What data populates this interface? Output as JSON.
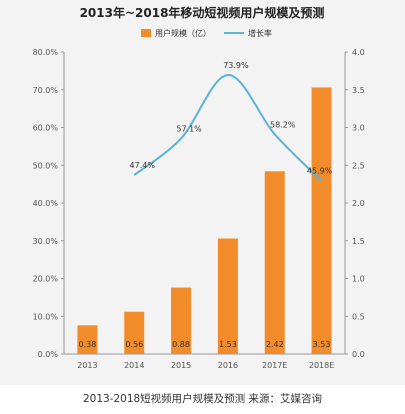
{
  "chart_data": {
    "type": "bar",
    "title": "2013年~2018年移动短视频用户规模及预测",
    "categories": [
      "2013",
      "2014",
      "2015",
      "2016",
      "2017E",
      "2018E"
    ],
    "series": [
      {
        "name": "用户规模（亿）",
        "type": "bar",
        "axis": "right",
        "values": [
          0.38,
          0.56,
          0.88,
          1.53,
          2.42,
          3.53
        ],
        "labels": [
          "0.38",
          "0.56",
          "0.88",
          "1.53",
          "2.42",
          "3.53"
        ],
        "color": "#f28c2b"
      },
      {
        "name": "增长率",
        "type": "line",
        "axis": "left",
        "values": [
          47.4,
          57.1,
          73.9,
          58.2,
          45.9
        ],
        "x": [
          "2014",
          "2015",
          "2016",
          "2017E",
          "2018E"
        ],
        "labels": [
          "47.4%",
          "57.1%",
          "73.9%",
          "58.2%",
          "45.9%"
        ],
        "color": "#5ab4d6"
      }
    ],
    "left_axis": {
      "ylim": [
        0,
        80
      ],
      "ticks": [
        "0.0%",
        "10.0%",
        "20.0%",
        "30.0%",
        "40.0%",
        "50.0%",
        "60.0%",
        "70.0%",
        "80.0%"
      ]
    },
    "right_axis": {
      "ylim": [
        0,
        4
      ],
      "ticks": [
        "0.0",
        "0.5",
        "1.0",
        "1.5",
        "2.0",
        "2.5",
        "3.0",
        "3.5",
        "4.0"
      ]
    },
    "grid": false,
    "legend": "top-center"
  },
  "caption": "2013-2018短视频用户规模及预测 来源：艾媒咨询"
}
